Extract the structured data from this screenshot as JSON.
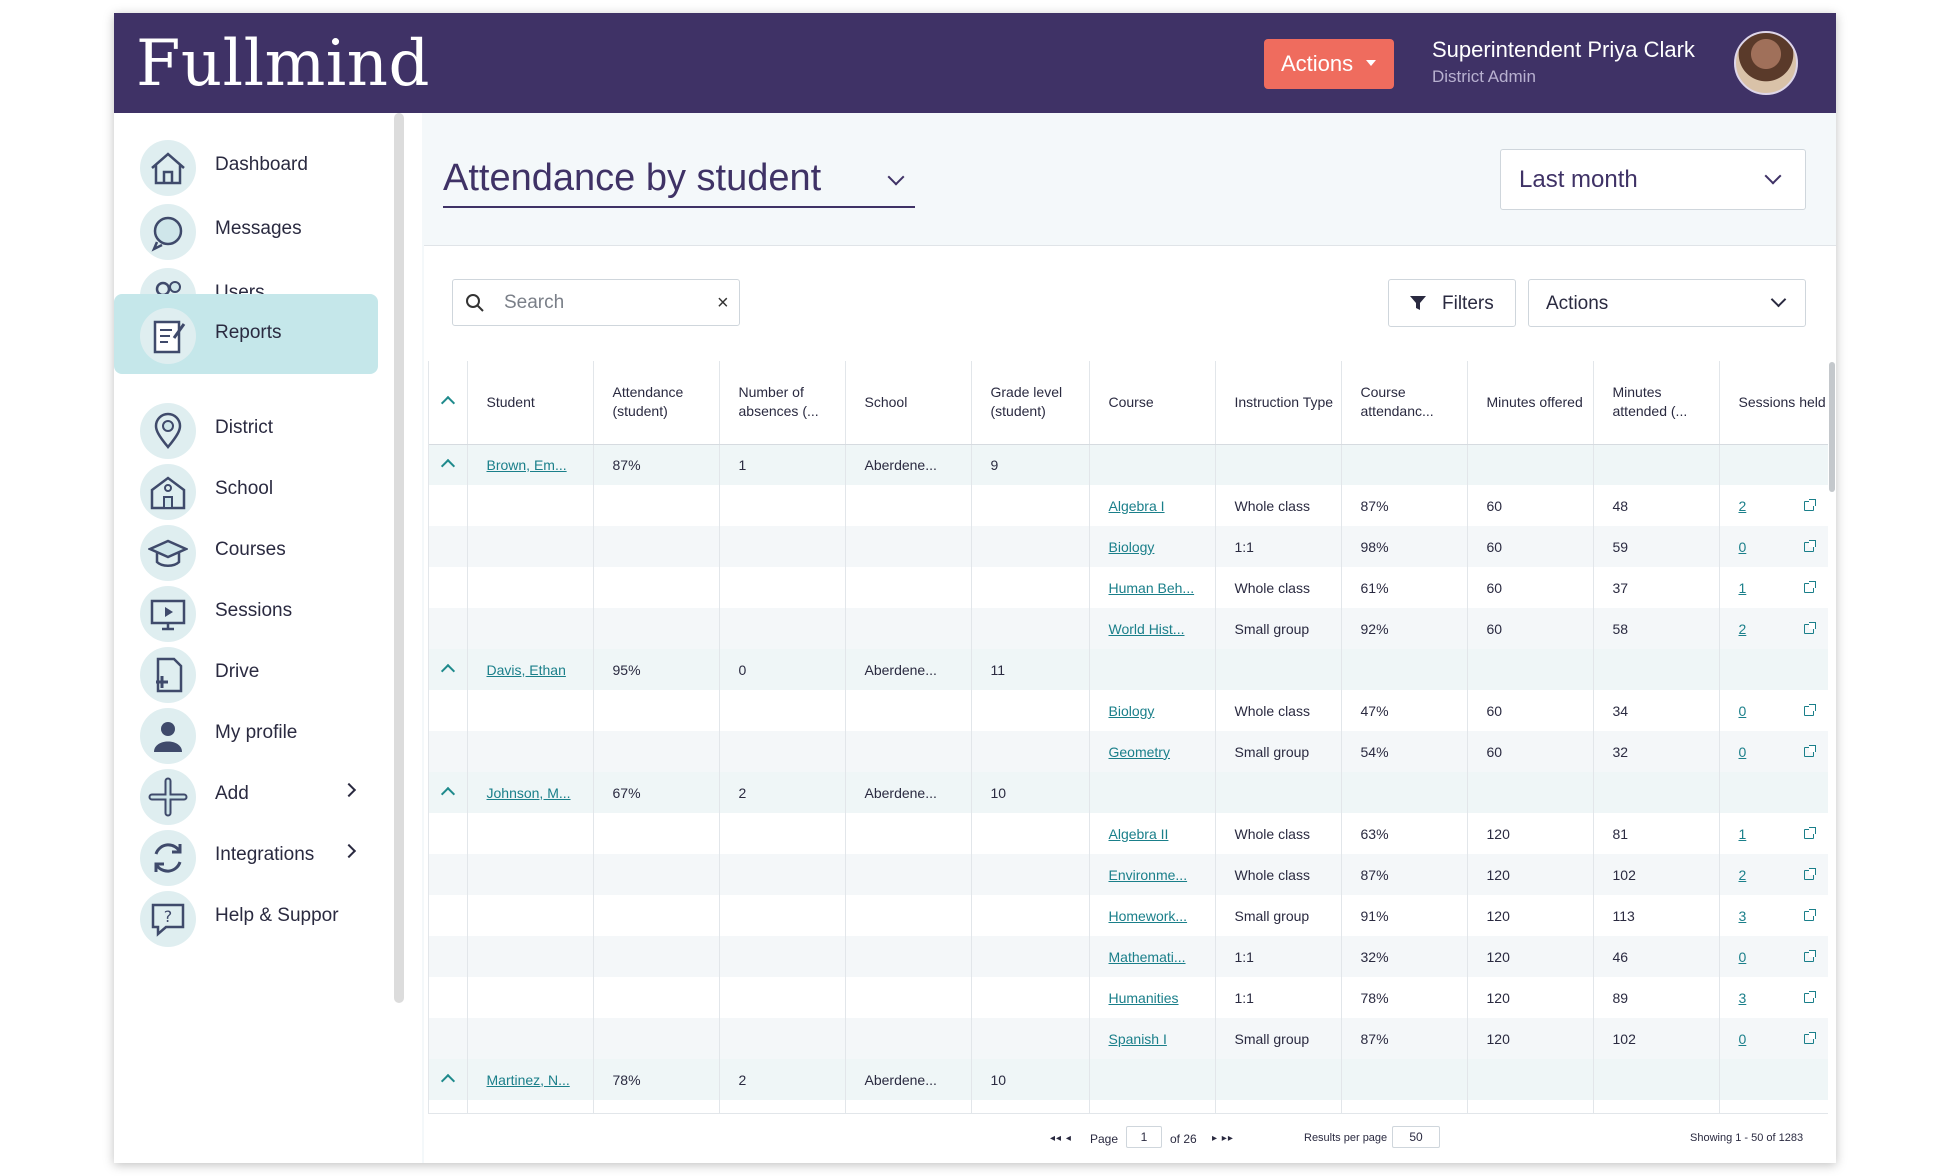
{
  "header": {
    "logo": "Fullmind",
    "actions_label": "Actions",
    "user_name": "Superintendent Priya Clark",
    "user_role": "District Admin"
  },
  "sidebar": {
    "items": [
      {
        "label": "Dashboard",
        "icon": "home-icon"
      },
      {
        "label": "Messages",
        "icon": "messages-icon"
      },
      {
        "label": "Users",
        "icon": "users-icon"
      },
      {
        "label": "Reports",
        "icon": "reports-icon",
        "active": true
      },
      {
        "label": "District",
        "icon": "location-pin-icon"
      },
      {
        "label": "School",
        "icon": "school-icon"
      },
      {
        "label": "Courses",
        "icon": "graduation-cap-icon"
      },
      {
        "label": "Sessions",
        "icon": "monitor-play-icon"
      },
      {
        "label": "Drive",
        "icon": "file-add-icon"
      },
      {
        "label": "My profile",
        "icon": "person-icon"
      },
      {
        "label": "Add",
        "icon": "plus-icon",
        "has_submenu": true
      },
      {
        "label": "Integrations",
        "icon": "sync-icon",
        "has_submenu": true
      },
      {
        "label": "Help & Suppor",
        "icon": "help-icon"
      }
    ]
  },
  "page": {
    "title": "Attendance by student",
    "period": "Last month"
  },
  "toolbar": {
    "search_placeholder": "Search",
    "filters_label": "Filters",
    "actions_label": "Actions"
  },
  "table": {
    "columns": [
      "Student",
      "Attendance (student)",
      "Number of absences (...",
      "School",
      "Grade level (student)",
      "Course",
      "Instruction Type",
      "Course attendanc...",
      "Minutes offered",
      "Minutes attended (...",
      "Sessions held"
    ],
    "groups": [
      {
        "student": "Brown, Em...",
        "attendance": "87%",
        "absences": "1",
        "school": "Aberdene...",
        "grade": "9",
        "courses": [
          {
            "course": "Algebra I",
            "type": "Whole class",
            "attendance": "87%",
            "offered": "60",
            "attended": "48",
            "sessions": "2"
          },
          {
            "course": "Biology",
            "type": "1:1",
            "attendance": "98%",
            "offered": "60",
            "attended": "59",
            "sessions": "0"
          },
          {
            "course": "Human Beh...",
            "type": "Whole class",
            "attendance": "61%",
            "offered": "60",
            "attended": "37",
            "sessions": "1"
          },
          {
            "course": "World Hist...",
            "type": "Small group",
            "attendance": "92%",
            "offered": "60",
            "attended": "58",
            "sessions": "2"
          }
        ]
      },
      {
        "student": "Davis, Ethan",
        "attendance": "95%",
        "absences": "0",
        "school": "Aberdene...",
        "grade": "11",
        "courses": [
          {
            "course": "Biology",
            "type": "Whole class",
            "attendance": "47%",
            "offered": "60",
            "attended": "34",
            "sessions": "0"
          },
          {
            "course": "Geometry",
            "type": "Small group",
            "attendance": "54%",
            "offered": "60",
            "attended": "32",
            "sessions": "0"
          }
        ]
      },
      {
        "student": "Johnson, M...",
        "attendance": "67%",
        "absences": "2",
        "school": "Aberdene...",
        "grade": "10",
        "courses": [
          {
            "course": "Algebra II",
            "type": "Whole class",
            "attendance": "63%",
            "offered": "120",
            "attended": "81",
            "sessions": "1"
          },
          {
            "course": "Environme...",
            "type": "Whole class",
            "attendance": "87%",
            "offered": "120",
            "attended": "102",
            "sessions": "2"
          },
          {
            "course": "Homework...",
            "type": "Small group",
            "attendance": "91%",
            "offered": "120",
            "attended": "113",
            "sessions": "3"
          },
          {
            "course": "Mathemati...",
            "type": "1:1",
            "attendance": "32%",
            "offered": "120",
            "attended": "46",
            "sessions": "0"
          },
          {
            "course": "Humanities",
            "type": "1:1",
            "attendance": "78%",
            "offered": "120",
            "attended": "89",
            "sessions": "3"
          },
          {
            "course": "Spanish I",
            "type": "Small group",
            "attendance": "87%",
            "offered": "120",
            "attended": "102",
            "sessions": "0"
          }
        ]
      },
      {
        "student": "Martinez, N...",
        "attendance": "78%",
        "absences": "2",
        "school": "Aberdene...",
        "grade": "10",
        "courses": []
      }
    ]
  },
  "pagination": {
    "page_label": "Page",
    "page": "1",
    "of_label": "of 26",
    "per_page_label": "Results per page",
    "per_page": "50",
    "showing": "Showing 1 - 50 of 1283"
  },
  "colors": {
    "header_bg": "#3f3266",
    "accent_button": "#ef6c5e",
    "active_nav": "#c5e7ea",
    "link": "#1a7f8a"
  }
}
